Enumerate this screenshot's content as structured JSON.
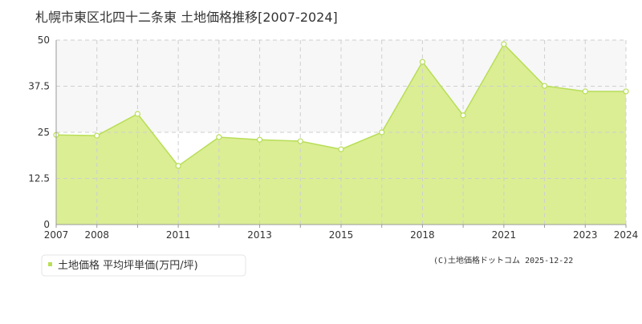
{
  "chart_data": {
    "type": "area",
    "title": "札幌市東区北四十二条東 土地価格推移[2007-2024]",
    "categories": [
      "2007",
      "2008",
      null,
      "2011",
      null,
      "2013",
      null,
      "2015",
      null,
      "2018",
      null,
      "2021",
      null,
      "2023",
      "2024"
    ],
    "series": [
      {
        "name": "土地価格 平均坪単価(万円/坪)",
        "color": "#b8de57",
        "fill": "#dbee94",
        "values": [
          24.3,
          24.1,
          30.0,
          15.9,
          23.7,
          23.0,
          22.6,
          20.4,
          25.0,
          44.1,
          29.6,
          48.9,
          37.6,
          36.1,
          36.1
        ]
      }
    ],
    "ylim": [
      0,
      50
    ],
    "yticks": [
      0,
      12.5,
      25,
      37.5,
      50
    ],
    "grid": true,
    "copyright": "(C)土地価格ドットコム 2025-12-22"
  }
}
